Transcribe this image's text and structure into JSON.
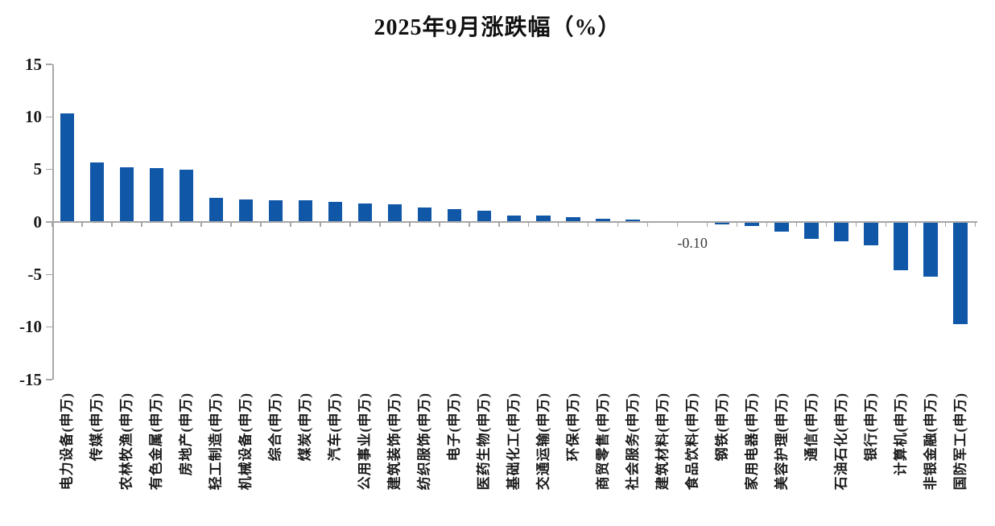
{
  "header": {
    "title": "2025年9月涨跌幅（%）"
  },
  "colors": {
    "bar": "#1057a8",
    "axis": "#a6a6a6",
    "title_text": "#111111",
    "data_label_text": "#3a3a3a"
  },
  "chart_data": {
    "type": "bar",
    "title": "2025年9月涨跌幅（%）",
    "xlabel": "",
    "ylabel": "",
    "ylim": [
      -15,
      15
    ],
    "yticks": [
      15,
      10,
      5,
      0,
      -5,
      -10,
      -15
    ],
    "grid": false,
    "legend": false,
    "bar_color": "#1057a8",
    "categories": [
      "电力设备(申万)",
      "传媒(申万)",
      "农林牧渔(申万)",
      "有色金属(申万)",
      "房地产(申万)",
      "轻工制造(申万)",
      "机械设备(申万)",
      "综合(申万)",
      "煤炭(申万)",
      "汽车(申万)",
      "公用事业(申万)",
      "建筑装饰(申万)",
      "纺织服饰(申万)",
      "电子(申万)",
      "医药生物(申万)",
      "基础化工(申万)",
      "交通运输(申万)",
      "环保(申万)",
      "商贸零售(申万)",
      "社会服务(申万)",
      "建筑材料(申万)",
      "食品饮料(申万)",
      "钢铁(申万)",
      "家用电器(申万)",
      "美容护理(申万)",
      "通信(申万)",
      "石油石化(申万)",
      "银行(申万)",
      "计算机(申万)",
      "非银金融(申万)",
      "国防军工(申万)"
    ],
    "values": [
      10.35,
      5.65,
      5.2,
      5.1,
      5.0,
      2.3,
      2.15,
      2.05,
      2.05,
      1.9,
      1.75,
      1.65,
      1.4,
      1.2,
      1.1,
      0.6,
      0.6,
      0.45,
      0.3,
      0.2,
      -0.08,
      -0.1,
      -0.25,
      -0.35,
      -0.95,
      -1.6,
      -1.8,
      -2.25,
      -4.6,
      -5.2,
      -9.7
    ],
    "data_labels": [
      {
        "index": 21,
        "category": "食品饮料(申万)",
        "text": "-0.10"
      }
    ]
  }
}
